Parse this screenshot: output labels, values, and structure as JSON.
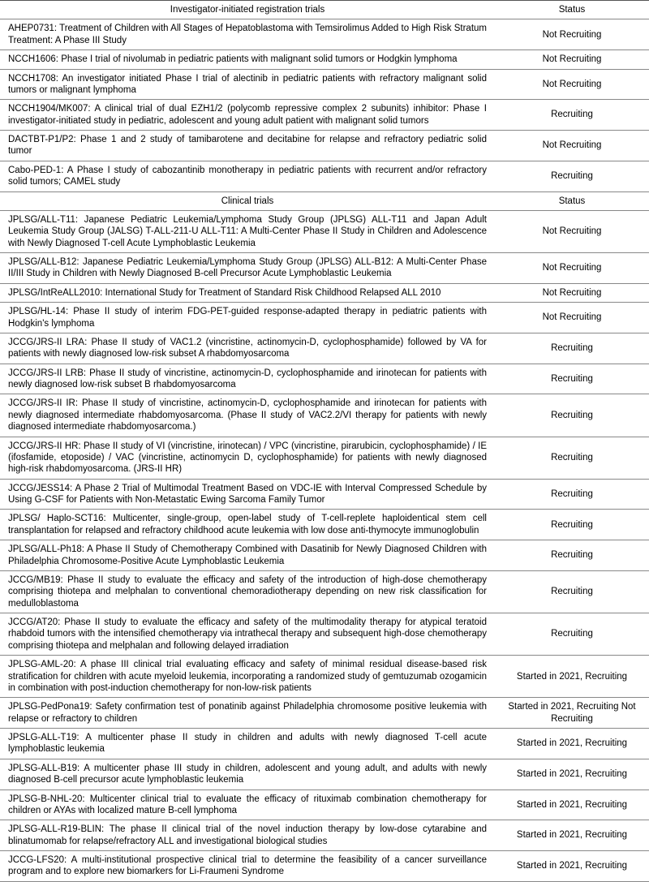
{
  "sections": [
    {
      "header_label": "Investigator-initiated registration trials",
      "status_label": "Status",
      "rows": [
        {
          "title": "AHEP0731: Treatment of Children with All Stages of Hepatoblastoma with Temsirolimus Added to High Risk Stratum Treatment: A Phase III Study",
          "status": "Not Recruiting"
        },
        {
          "title": "NCCH1606: Phase I trial of nivolumab in pediatric patients with malignant solid tumors or Hodgkin lymphoma",
          "status": "Not Recruiting"
        },
        {
          "title": "NCCH1708: An investigator initiated Phase I trial of alectinib in pediatric patients with refractory malignant solid tumors or malignant lymphoma",
          "status": "Not Recruiting"
        },
        {
          "title": "NCCH1904/MK007: A clinical trial of dual EZH1/2 (polycomb repressive complex 2 subunits) inhibitor: Phase I investigator-initiated study in pediatric, adolescent and young adult patient with malignant solid tumors",
          "status": "Recruiting"
        },
        {
          "title": "DACTBT-P1/P2: Phase 1 and 2 study of tamibarotene and decitabine for relapse and refractory pediatric solid tumor",
          "status": "Not Recruiting"
        },
        {
          "title": "Cabo-PED-1: A Phase I study of cabozantinib monotherapy in pediatric patients with recurrent and/or refractory solid tumors; CAMEL study",
          "status": "Recruiting"
        }
      ]
    },
    {
      "header_label": "Clinical trials",
      "status_label": "Status",
      "rows": [
        {
          "title": "JPLSG/ALL-T11: Japanese Pediatric Leukemia/Lymphoma Study Group (JPLSG) ALL-T11 and Japan Adult Leukemia Study Group (JALSG) T-ALL-211-U ALL-T11: A Multi-Center Phase II Study in Children and Adolescence with Newly Diagnosed T-cell Acute Lymphoblastic Leukemia",
          "status": "Not Recruiting"
        },
        {
          "title": "JPLSG/ALL-B12: Japanese Pediatric Leukemia/Lymphoma Study Group (JPLSG) ALL-B12: A Multi-Center Phase II/III Study in Children with Newly Diagnosed B-cell Precursor Acute Lymphoblastic Leukemia",
          "status": "Not Recruiting"
        },
        {
          "title": "JPLSG/IntReALL2010: International Study for Treatment of Standard Risk Childhood Relapsed ALL 2010",
          "status": "Not Recruiting"
        },
        {
          "title": "JPLSG/HL-14: Phase II study of interim FDG-PET-guided response-adapted therapy in pediatric patients with Hodgkin's lymphoma",
          "status": "Not Recruiting"
        },
        {
          "title": "JCCG/JRS-II LRA: Phase II study of VAC1.2 (vincristine, actinomycin-D, cyclophosphamide) followed by VA for patients with newly diagnosed low-risk subset A rhabdomyosarcoma",
          "status": "Recruiting"
        },
        {
          "title": "JCCG/JRS-II LRB: Phase II study of vincristine, actinomycin-D, cyclophosphamide and irinotecan for patients with newly diagnosed low-risk subset B rhabdomyosarcoma",
          "status": "Recruiting"
        },
        {
          "title": "JCCG/JRS-II IR: Phase II study of vincristine, actinomycin-D, cyclophosphamide and irinotecan for patients with newly diagnosed intermediate rhabdomyosarcoma. (Phase II study of VAC2.2/VI therapy for patients with newly diagnosed intermediate rhabdomyosarcoma.)",
          "status": "Recruiting"
        },
        {
          "title": "JCCG/JRS-II HR: Phase II study of VI (vincristine, irinotecan) / VPC (vincristine, pirarubicin, cyclophosphamide) / IE (ifosfamide, etoposide) / VAC (vincristine, actinomycin D, cyclophosphamide) for patients with newly diagnosed high-risk rhabdomyosarcoma. (JRS-II HR)",
          "status": "Recruiting"
        },
        {
          "title": "JCCG/JESS14: A Phase 2 Trial of Multimodal Treatment Based on VDC-IE with Interval Compressed Schedule by Using G-CSF for Patients with Non-Metastatic Ewing Sarcoma Family Tumor",
          "status": "Recruiting"
        },
        {
          "title": "JPLSG/ Haplo-SCT16: Multicenter, single-group, open-label study of T-cell-replete haploidentical stem cell transplantation for relapsed and refractory childhood acute leukemia with low dose anti-thymocyte immunoglobulin",
          "status": "Recruiting"
        },
        {
          "title": "JPLSG/ALL-Ph18: A Phase II Study of Chemotherapy Combined with Dasatinib for Newly Diagnosed Children with Philadelphia Chromosome-Positive Acute Lymphoblastic Leukemia",
          "status": "Recruiting"
        },
        {
          "title": "JCCG/MB19: Phase II study to evaluate the efficacy and safety of the introduction of high-dose chemotherapy comprising thiotepa and melphalan to conventional chemoradiotherapy depending on new risk classification for medulloblastoma",
          "status": "Recruiting"
        },
        {
          "title": "JCCG/AT20: Phase II study to evaluate the efficacy and safety of the multimodality therapy for atypical teratoid rhabdoid tumors with the intensified chemotherapy via intrathecal therapy and subsequent high-dose chemotherapy comprising thiotepa and melphalan and following delayed irradiation",
          "status": "Recruiting"
        },
        {
          "title": "JPLSG-AML-20: A phase III clinical trial evaluating efficacy and safety of minimal residual disease-based risk stratification for children with acute myeloid leukemia, incorporating a randomized study of gemtuzumab ozogamicin in combination with post-induction chemotherapy for non-low-risk patients",
          "status": "Started in 2021, Recruiting"
        },
        {
          "title": "JPLSG-PedPona19: Safety confirmation test of ponatinib against Philadelphia chromosome positive leukemia with relapse or refractory to children",
          "status": "Started in 2021, Recruiting Not Recruiting"
        },
        {
          "title": "JPSLG-ALL-T19: A multicenter phase II study in children and adults with newly diagnosed T-cell acute lymphoblastic leukemia",
          "status": "Started in 2021, Recruiting"
        },
        {
          "title": "JPLSG-ALL-B19: A multicenter phase III study in children, adolescent and young adult, and adults with newly diagnosed B-cell precursor acute lymphoblastic leukemia",
          "status": "Started in 2021, Recruiting"
        },
        {
          "title": "JPLSG-B-NHL-20: Multicenter clinical trial to evaluate the efficacy of rituximab combination chemotherapy for children or AYAs with localized mature B-cell lymphoma",
          "status": "Started in 2021, Recruiting"
        },
        {
          "title": "JPLSG-ALL-R19-BLIN: The phase II clinical trial of the novel induction therapy by low-dose cytarabine and blinatumomab for relapse/refractory ALL and investigational biological studies",
          "status": "Started in 2021, Recruiting"
        },
        {
          "title": "JCCG-LFS20: A multi-institutional prospective clinical trial to determine the feasibility of a cancer surveillance program and to explore new biomarkers for Li-Fraumeni Syndrome",
          "status": "Started in 2021, Recruiting"
        }
      ]
    }
  ]
}
